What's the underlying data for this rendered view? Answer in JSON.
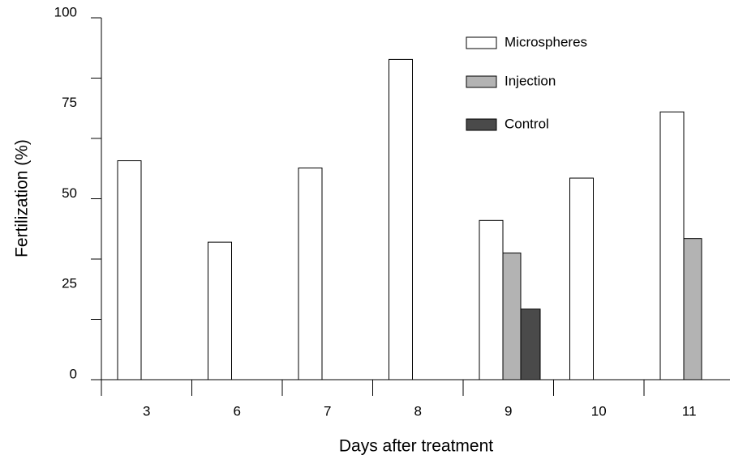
{
  "chart_data": {
    "type": "bar",
    "x_label": "Days after treatment",
    "y_label": "Fertilization (%)",
    "categories": [
      "3",
      "6",
      "7",
      "8",
      "9",
      "10",
      "11"
    ],
    "series": [
      {
        "name": "Microspheres",
        "color": "#ffffff",
        "values": [
          60.5,
          38,
          58.5,
          88.5,
          44,
          55.7,
          74
        ]
      },
      {
        "name": "Injection",
        "color": "#b3b3b3",
        "values": [
          null,
          null,
          null,
          null,
          35,
          null,
          39
        ]
      },
      {
        "name": "Control",
        "color": "#4a4a4a",
        "values": [
          null,
          null,
          null,
          null,
          19.5,
          null,
          null
        ]
      }
    ],
    "ylim": [
      0,
      100
    ],
    "yticks": [
      0,
      25,
      50,
      75,
      100
    ],
    "yticks_minor": [
      0,
      16.67,
      33.33,
      50,
      66.67,
      83.33,
      100
    ],
    "legend": "top-right"
  }
}
